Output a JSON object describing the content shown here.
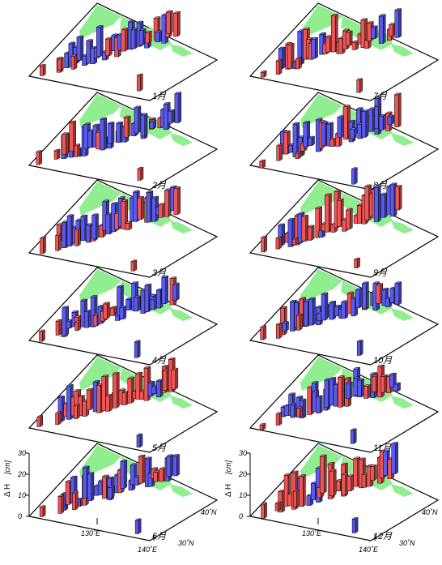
{
  "figure": {
    "zlabel": "Δ H",
    "zunit": "[cm]",
    "zticks": [
      "30",
      "20",
      "10",
      "0"
    ],
    "lon_ticks": [
      "130˚E",
      "140˚E"
    ],
    "lat_ticks": [
      "40˚N",
      "30˚N"
    ]
  },
  "colors": {
    "land": "#90ee90",
    "positive": "#ee5555",
    "negative": "#5a5aee",
    "outline": "#000000"
  },
  "chart_data": {
    "type": "3d-bar",
    "description_axes": {
      "zlabel": "Δ H [cm]",
      "zlim": [
        0,
        30
      ],
      "x_ticks": [
        "130˚E",
        "140˚E"
      ],
      "y_ticks": [
        "30˚N",
        "40˚N"
      ]
    },
    "panels": [
      {
        "month": "1月"
      },
      {
        "month": "2月"
      },
      {
        "month": "3月"
      },
      {
        "month": "4月"
      },
      {
        "month": "5月"
      },
      {
        "month": "6月"
      },
      {
        "month": "7月"
      },
      {
        "month": "8月"
      },
      {
        "month": "9月"
      },
      {
        "month": "10月"
      },
      {
        "month": "11月"
      },
      {
        "month": "12月"
      }
    ]
  }
}
